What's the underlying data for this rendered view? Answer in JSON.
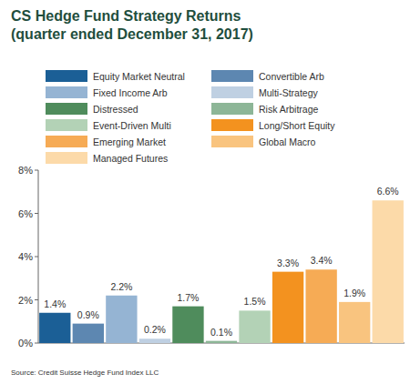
{
  "chart_data": {
    "type": "bar",
    "title": "CS Hedge Fund Strategy Returns",
    "subtitle": "(quarter ended December 31, 2017)",
    "source": "Source: Credit Suisse Hedge Fund Index LLC",
    "categories": [
      "Equity Market Neutral",
      "Convertible Arb",
      "Fixed Income Arb",
      "Multi-Strategy",
      "Distressed",
      "Risk Arbitrage",
      "Event-Driven Multi",
      "Long/Short Equity",
      "Emerging Market",
      "Global Macro",
      "Managed Futures"
    ],
    "values": [
      1.4,
      0.9,
      2.2,
      0.2,
      1.7,
      0.1,
      1.5,
      3.3,
      3.4,
      1.9,
      6.6
    ],
    "value_labels": [
      "1.4%",
      "0.9%",
      "2.2%",
      "0.2%",
      "1.7%",
      "0.1%",
      "1.5%",
      "3.3%",
      "3.4%",
      "1.9%",
      "6.6%"
    ],
    "colors": [
      "#1b5f96",
      "#5d87b1",
      "#95b4d3",
      "#bfd0e2",
      "#4f8c5c",
      "#8db697",
      "#b3d2b6",
      "#f3921f",
      "#f6ab55",
      "#f9c47f",
      "#fcdaa9"
    ],
    "ylim": [
      0,
      8
    ],
    "yticks": [
      {
        "value": 0,
        "label": "0%"
      },
      {
        "value": 2,
        "label": "2%"
      },
      {
        "value": 4,
        "label": "4%"
      },
      {
        "value": 6,
        "label": "6%"
      },
      {
        "value": 8,
        "label": "8%"
      }
    ],
    "grid": false,
    "data_labels": true,
    "tick_labels": "y",
    "legend": "top"
  }
}
